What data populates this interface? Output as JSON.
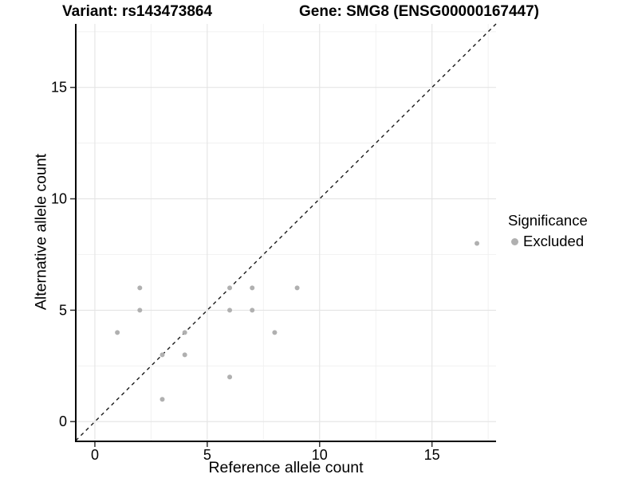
{
  "titles": {
    "variant": "Variant: rs143473864",
    "gene": "Gene: SMG8 (ENSG00000167447)"
  },
  "legend": {
    "title": "Significance",
    "items": [
      {
        "label": "Excluded",
        "color": "#b0b0b0"
      }
    ]
  },
  "chart_data": {
    "type": "scatter",
    "title": "Variant: rs143473864 | Gene: SMG8 (ENSG00000167447)",
    "xlabel": "Reference allele count",
    "ylabel": "Alternative allele count",
    "xlim": [
      -0.85,
      17.85
    ],
    "ylim": [
      -0.85,
      17.85
    ],
    "xticks": [
      0,
      5,
      10,
      15
    ],
    "yticks": [
      0,
      5,
      10,
      15
    ],
    "xminor": [
      2.5,
      7.5,
      12.5,
      17.5
    ],
    "yminor": [
      2.5,
      7.5,
      12.5,
      17.5
    ],
    "grid": {
      "major_color": "#e4e4e4",
      "minor_color": "#f0f0f0"
    },
    "series": [
      {
        "name": "Excluded",
        "color": "#b0b0b0",
        "points": [
          [
            1,
            4
          ],
          [
            2,
            5
          ],
          [
            2,
            6
          ],
          [
            3,
            1
          ],
          [
            3,
            3
          ],
          [
            4,
            3
          ],
          [
            4,
            4
          ],
          [
            6,
            2
          ],
          [
            6,
            5
          ],
          [
            6,
            6
          ],
          [
            7,
            5
          ],
          [
            7,
            6
          ],
          [
            8,
            4
          ],
          [
            9,
            6
          ],
          [
            17,
            8
          ]
        ]
      }
    ],
    "identity_line": {
      "slope": 1,
      "intercept": 0,
      "style": "dashed",
      "color": "#1a1a1a"
    },
    "axis_color": "#000000",
    "tick_color": "#333333",
    "legend_position": "right"
  }
}
